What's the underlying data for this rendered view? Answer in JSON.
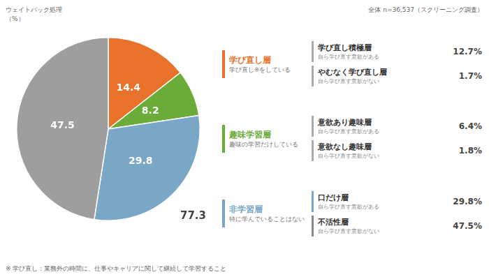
{
  "chart_data": {
    "type": "pie",
    "values": [
      14.4,
      8.2,
      29.8,
      47.5
    ],
    "colors": [
      "#E8722A",
      "#6AAB3A",
      "#7BA7C7",
      "#9E9E9E"
    ],
    "data_labels": true,
    "annotations": [
      "ウェイトバック処理",
      "（%）",
      "全体  n=36,537（スクリーニング調査）",
      "77.3",
      "※ 学び直し：業務外の時間に、仕事やキャリアに関して継続して学習すること"
    ],
    "groups": [
      {
        "name": "学び直し層",
        "sub": "学び直し※をしている",
        "color": "#E8722A",
        "children": [
          {
            "name": "学び直し積極層",
            "sub": "自ら学び直す意欲がある",
            "value": 12.7,
            "label": "12.7%",
            "color": "#AAAAAA"
          },
          {
            "name": "やむなく学び直し層",
            "sub": "自ら学び直す意欲がない",
            "value": 1.7,
            "label": "1.7%",
            "color": "#AAAAAA"
          }
        ]
      },
      {
        "name": "趣味学習層",
        "sub": "趣味の学習だけしている",
        "color": "#6AAB3A",
        "children": [
          {
            "name": "意欲あり趣味層",
            "sub": "自ら学び直す意欲がある",
            "value": 6.4,
            "label": "6.4%",
            "color": "#AAAAAA"
          },
          {
            "name": "意欲なし趣味層",
            "sub": "自ら学び直す意欲がない",
            "value": 1.8,
            "label": "1.8%",
            "color": "#AAAAAA"
          }
        ]
      },
      {
        "name": "非学習層",
        "sub": "特に学んでいることはない",
        "color": "#7BA7C7",
        "children": [
          {
            "name": "口だけ層",
            "sub": "自ら学び直す意欲がある",
            "value": 29.8,
            "label": "29.8%",
            "color": "#7BA7C7"
          },
          {
            "name": "不活性層",
            "sub": "自ら学び直す意欲がない",
            "value": 47.5,
            "label": "47.5%",
            "color": "#888888"
          }
        ]
      }
    ]
  }
}
